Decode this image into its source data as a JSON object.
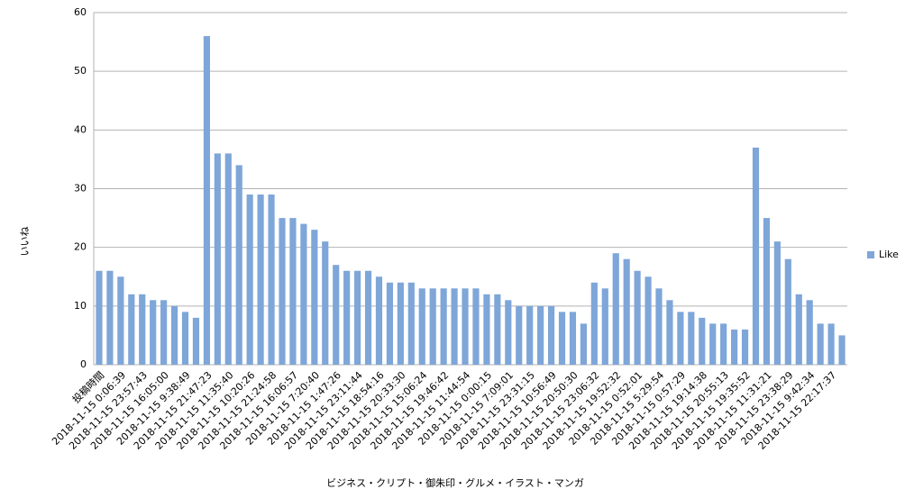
{
  "chart_data": {
    "type": "bar",
    "y_label": "いいね",
    "x_label": "ビジネス・クリプト・御朱印・グルメ・イラスト・マンガ",
    "categories": [
      "投稿時間",
      null,
      "2018-11-15 0:06:39",
      null,
      "2018-11-15 23:57:43",
      null,
      "2018-11-15 16:05:00",
      null,
      "2018-11-15 9:38:49",
      null,
      "2018-11-15 21:47:23",
      null,
      "2018-11-15 11:35:40",
      null,
      "2018-11-15 10:20:26",
      null,
      "2018-11-15 21:24:58",
      null,
      "2018-11-15 16:06:57",
      null,
      "2018-11-15 7:20:40",
      null,
      "2018-11-15 1:47:26",
      null,
      "2018-11-15 23:11:44",
      null,
      "2018-11-15 18:54:16",
      null,
      "2018-11-15 20:33:30",
      null,
      "2018-11-15 15:06:24",
      null,
      "2018-11-15 19:46:42",
      null,
      "2018-11-15 11:44:54",
      null,
      "2018-11-15 0:00:15",
      null,
      "2018-11-15 7:09:01",
      null,
      "2018-11-15 23:31:15",
      null,
      "2018-11-15 10:56:49",
      null,
      "2018-11-15 20:50:30",
      null,
      "2018-11-15 23:06:32",
      null,
      "2018-11-15 19:52:32",
      null,
      "2018-11-15 0:52:01",
      null,
      "2018-11-15 5:29:54",
      null,
      "2018-11-15 0:57:29",
      null,
      "2018-11-15 19:14:38",
      null,
      "2018-11-15 20:55:13",
      null,
      "2018-11-15 19:35:52",
      null,
      "2018-11-15 11:31:21",
      null,
      "2018-11-15 23:38:29",
      null,
      "2018-11-15 9:42:34",
      null,
      "2018-11-15 22:17:37",
      null
    ],
    "series": [
      {
        "name": "Like",
        "color": "#7ea6d8",
        "values": [
          16,
          16,
          15,
          12,
          12,
          11,
          11,
          10,
          9,
          8,
          56,
          36,
          36,
          34,
          29,
          29,
          29,
          25,
          25,
          24,
          23,
          21,
          17,
          16,
          16,
          16,
          15,
          14,
          14,
          14,
          13,
          13,
          13,
          13,
          13,
          13,
          12,
          12,
          11,
          10,
          10,
          10,
          10,
          9,
          9,
          7,
          14,
          13,
          19,
          18,
          16,
          15,
          13,
          11,
          9,
          9,
          8,
          7,
          7,
          6,
          6,
          37,
          25,
          21,
          18,
          12,
          11,
          7,
          7,
          5
        ]
      }
    ],
    "ylim": [
      0,
      60
    ],
    "yticks": [
      0,
      10,
      20,
      30,
      40,
      50,
      60
    ],
    "grid": true,
    "legend": "right"
  }
}
